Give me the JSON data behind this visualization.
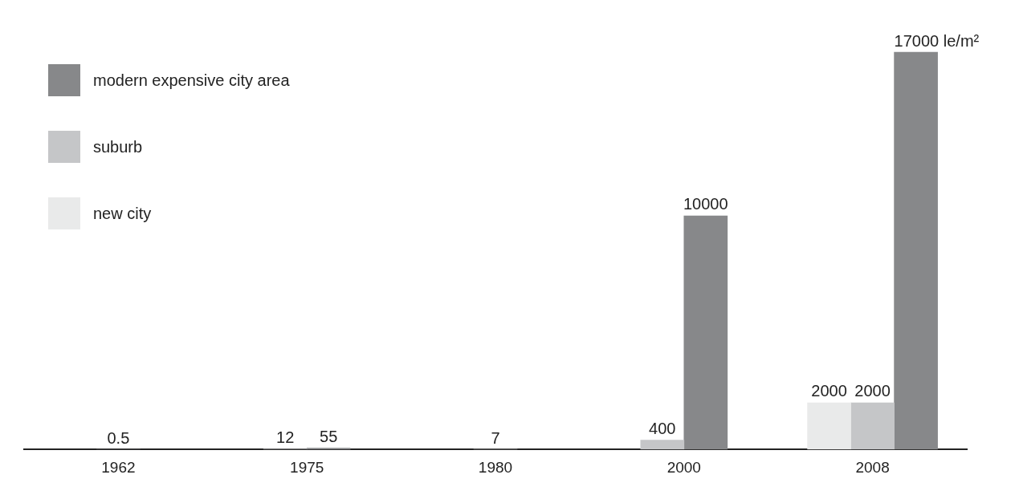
{
  "chart_data": {
    "type": "bar",
    "categories": [
      "1962",
      "1975",
      "1980",
      "2000",
      "2008"
    ],
    "series": [
      {
        "name": "new city",
        "color": "#e9eaea",
        "values": [
          null,
          null,
          7,
          null,
          2000
        ],
        "value_labels": [
          null,
          null,
          "7",
          null,
          "2000"
        ]
      },
      {
        "name": "suburb",
        "color": "#c5c6c8",
        "values": [
          null,
          12,
          null,
          400,
          2000
        ],
        "value_labels": [
          null,
          "12",
          null,
          "400",
          "2000"
        ]
      },
      {
        "name": "modern expensive city area",
        "color": "#87888a",
        "values": [
          0.5,
          55,
          null,
          10000,
          17000
        ],
        "value_labels": [
          "0.5",
          "55",
          null,
          "10000",
          "17000 le/m²"
        ]
      }
    ],
    "legend": "top left",
    "grid": false
  }
}
